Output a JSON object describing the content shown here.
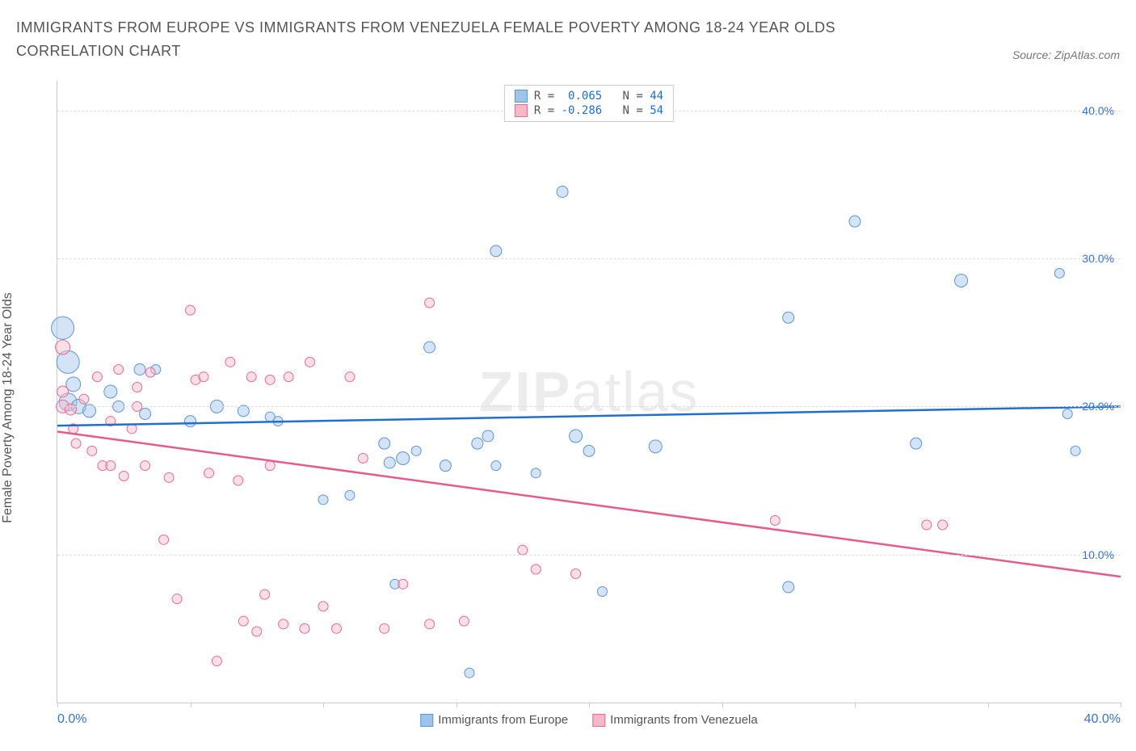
{
  "title": "IMMIGRANTS FROM EUROPE VS IMMIGRANTS FROM VENEZUELA FEMALE POVERTY AMONG 18-24 YEAR OLDS CORRELATION CHART",
  "source_label": "Source: ZipAtlas.com",
  "y_axis_label": "Female Poverty Among 18-24 Year Olds",
  "watermark_bold": "ZIP",
  "watermark_light": "atlas",
  "chart": {
    "type": "scatter",
    "x_min": 0,
    "x_max": 40,
    "y_min": 0,
    "y_max": 42,
    "y_ticks": [
      10,
      20,
      30,
      40
    ],
    "y_tick_labels": [
      "10.0%",
      "20.0%",
      "30.0%",
      "40.0%"
    ],
    "y_tick_color": "#3973cf",
    "x_range_left": "0.0%",
    "x_range_right": "40.0%",
    "x_range_color": "#3973cf",
    "x_tick_positions": [
      0,
      5,
      10,
      15,
      20,
      25,
      30,
      35,
      40
    ],
    "grid_color": "#dddddd",
    "background_color": "#ffffff",
    "series": [
      {
        "name": "Immigrants from Europe",
        "label": "Immigrants from Europe",
        "fill_color": "#9fc4ec",
        "stroke_color": "#5c96d6",
        "line_color": "#1f6fd0",
        "fill_opacity": 0.45,
        "R": "0.065",
        "N": "44",
        "trend": {
          "x1": 0,
          "y1": 18.7,
          "x2": 40,
          "y2": 20.0
        },
        "points": [
          {
            "x": 0.2,
            "y": 25.3,
            "r": 14
          },
          {
            "x": 0.4,
            "y": 23.0,
            "r": 14
          },
          {
            "x": 0.4,
            "y": 20.3,
            "r": 11
          },
          {
            "x": 0.6,
            "y": 21.5,
            "r": 9
          },
          {
            "x": 0.8,
            "y": 20.0,
            "r": 9
          },
          {
            "x": 1.2,
            "y": 19.7,
            "r": 8
          },
          {
            "x": 2.0,
            "y": 21.0,
            "r": 8
          },
          {
            "x": 2.3,
            "y": 20.0,
            "r": 7
          },
          {
            "x": 3.3,
            "y": 19.5,
            "r": 7
          },
          {
            "x": 3.1,
            "y": 22.5,
            "r": 7
          },
          {
            "x": 3.7,
            "y": 22.5,
            "r": 6
          },
          {
            "x": 5.0,
            "y": 19.0,
            "r": 7
          },
          {
            "x": 6.0,
            "y": 20.0,
            "r": 8
          },
          {
            "x": 7.0,
            "y": 19.7,
            "r": 7
          },
          {
            "x": 8.0,
            "y": 19.3,
            "r": 6
          },
          {
            "x": 8.3,
            "y": 19.0,
            "r": 6
          },
          {
            "x": 10.0,
            "y": 13.7,
            "r": 6
          },
          {
            "x": 11.0,
            "y": 14.0,
            "r": 6
          },
          {
            "x": 12.5,
            "y": 16.2,
            "r": 7
          },
          {
            "x": 12.3,
            "y": 17.5,
            "r": 7
          },
          {
            "x": 13.0,
            "y": 16.5,
            "r": 8
          },
          {
            "x": 12.7,
            "y": 8.0,
            "r": 6
          },
          {
            "x": 13.5,
            "y": 17.0,
            "r": 6
          },
          {
            "x": 14.0,
            "y": 24.0,
            "r": 7
          },
          {
            "x": 14.6,
            "y": 16.0,
            "r": 7
          },
          {
            "x": 15.5,
            "y": 2.0,
            "r": 6
          },
          {
            "x": 15.8,
            "y": 17.5,
            "r": 7
          },
          {
            "x": 16.2,
            "y": 18.0,
            "r": 7
          },
          {
            "x": 16.5,
            "y": 16.0,
            "r": 6
          },
          {
            "x": 16.5,
            "y": 30.5,
            "r": 7
          },
          {
            "x": 18.0,
            "y": 15.5,
            "r": 6
          },
          {
            "x": 19.0,
            "y": 34.5,
            "r": 7
          },
          {
            "x": 19.5,
            "y": 18.0,
            "r": 8
          },
          {
            "x": 20.0,
            "y": 17.0,
            "r": 7
          },
          {
            "x": 20.5,
            "y": 7.5,
            "r": 6
          },
          {
            "x": 22.5,
            "y": 17.3,
            "r": 8
          },
          {
            "x": 27.5,
            "y": 26.0,
            "r": 7
          },
          {
            "x": 27.5,
            "y": 7.8,
            "r": 7
          },
          {
            "x": 30.0,
            "y": 32.5,
            "r": 7
          },
          {
            "x": 32.3,
            "y": 17.5,
            "r": 7
          },
          {
            "x": 34.0,
            "y": 28.5,
            "r": 8
          },
          {
            "x": 38.0,
            "y": 19.5,
            "r": 6
          },
          {
            "x": 38.3,
            "y": 17.0,
            "r": 6
          },
          {
            "x": 37.7,
            "y": 29.0,
            "r": 6
          }
        ]
      },
      {
        "name": "Immigrants from Venezuela",
        "label": "Immigrants from Venezuela",
        "fill_color": "#f4b8c9",
        "stroke_color": "#e86a92",
        "line_color": "#e65b8b",
        "fill_opacity": 0.45,
        "R": "-0.286",
        "N": "54",
        "trend": {
          "x1": 0,
          "y1": 18.3,
          "x2": 40,
          "y2": 8.5
        },
        "points": [
          {
            "x": 0.2,
            "y": 21.0,
            "r": 7
          },
          {
            "x": 0.2,
            "y": 20.0,
            "r": 8
          },
          {
            "x": 0.2,
            "y": 24.0,
            "r": 9
          },
          {
            "x": 0.5,
            "y": 19.8,
            "r": 7
          },
          {
            "x": 0.6,
            "y": 18.5,
            "r": 6
          },
          {
            "x": 0.7,
            "y": 17.5,
            "r": 6
          },
          {
            "x": 1.0,
            "y": 20.5,
            "r": 6
          },
          {
            "x": 1.3,
            "y": 17.0,
            "r": 6
          },
          {
            "x": 1.5,
            "y": 22.0,
            "r": 6
          },
          {
            "x": 1.7,
            "y": 16.0,
            "r": 6
          },
          {
            "x": 2.0,
            "y": 19.0,
            "r": 6
          },
          {
            "x": 2.0,
            "y": 16.0,
            "r": 6
          },
          {
            "x": 2.3,
            "y": 22.5,
            "r": 6
          },
          {
            "x": 2.5,
            "y": 15.3,
            "r": 6
          },
          {
            "x": 3.0,
            "y": 21.3,
            "r": 6
          },
          {
            "x": 3.0,
            "y": 20.0,
            "r": 6
          },
          {
            "x": 3.3,
            "y": 16.0,
            "r": 6
          },
          {
            "x": 3.5,
            "y": 22.3,
            "r": 6
          },
          {
            "x": 4.0,
            "y": 11.0,
            "r": 6
          },
          {
            "x": 4.2,
            "y": 15.2,
            "r": 6
          },
          {
            "x": 4.5,
            "y": 7.0,
            "r": 6
          },
          {
            "x": 5.0,
            "y": 26.5,
            "r": 6
          },
          {
            "x": 5.2,
            "y": 21.8,
            "r": 6
          },
          {
            "x": 5.5,
            "y": 22.0,
            "r": 6
          },
          {
            "x": 6.0,
            "y": 2.8,
            "r": 6
          },
          {
            "x": 6.5,
            "y": 23.0,
            "r": 6
          },
          {
            "x": 7.0,
            "y": 5.5,
            "r": 6
          },
          {
            "x": 7.3,
            "y": 22.0,
            "r": 6
          },
          {
            "x": 7.5,
            "y": 4.8,
            "r": 6
          },
          {
            "x": 7.8,
            "y": 7.3,
            "r": 6
          },
          {
            "x": 8.0,
            "y": 16.0,
            "r": 6
          },
          {
            "x": 8.0,
            "y": 21.8,
            "r": 6
          },
          {
            "x": 8.5,
            "y": 5.3,
            "r": 6
          },
          {
            "x": 8.7,
            "y": 22.0,
            "r": 6
          },
          {
            "x": 9.3,
            "y": 5.0,
            "r": 6
          },
          {
            "x": 9.5,
            "y": 23.0,
            "r": 6
          },
          {
            "x": 10.0,
            "y": 6.5,
            "r": 6
          },
          {
            "x": 10.5,
            "y": 5.0,
            "r": 6
          },
          {
            "x": 11.0,
            "y": 22.0,
            "r": 6
          },
          {
            "x": 11.5,
            "y": 16.5,
            "r": 6
          },
          {
            "x": 12.3,
            "y": 5.0,
            "r": 6
          },
          {
            "x": 13.0,
            "y": 8.0,
            "r": 6
          },
          {
            "x": 14.0,
            "y": 27.0,
            "r": 6
          },
          {
            "x": 14.0,
            "y": 5.3,
            "r": 6
          },
          {
            "x": 15.3,
            "y": 5.5,
            "r": 6
          },
          {
            "x": 17.5,
            "y": 10.3,
            "r": 6
          },
          {
            "x": 18.0,
            "y": 9.0,
            "r": 6
          },
          {
            "x": 19.5,
            "y": 8.7,
            "r": 6
          },
          {
            "x": 27.0,
            "y": 12.3,
            "r": 6
          },
          {
            "x": 32.7,
            "y": 12.0,
            "r": 6
          },
          {
            "x": 33.3,
            "y": 12.0,
            "r": 6
          },
          {
            "x": 5.7,
            "y": 15.5,
            "r": 6
          },
          {
            "x": 6.8,
            "y": 15.0,
            "r": 6
          },
          {
            "x": 2.8,
            "y": 18.5,
            "r": 6
          }
        ]
      }
    ]
  },
  "legend_R_label": "R =",
  "legend_N_label": "N =",
  "top_legend_value_color": "#1f6fd0"
}
